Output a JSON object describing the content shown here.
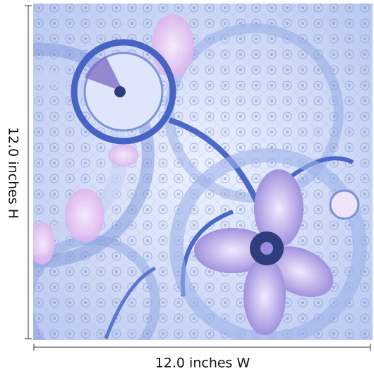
{
  "dimensions": {
    "height_label": "12.0 inches H",
    "width_label": "12.0 inches W"
  }
}
